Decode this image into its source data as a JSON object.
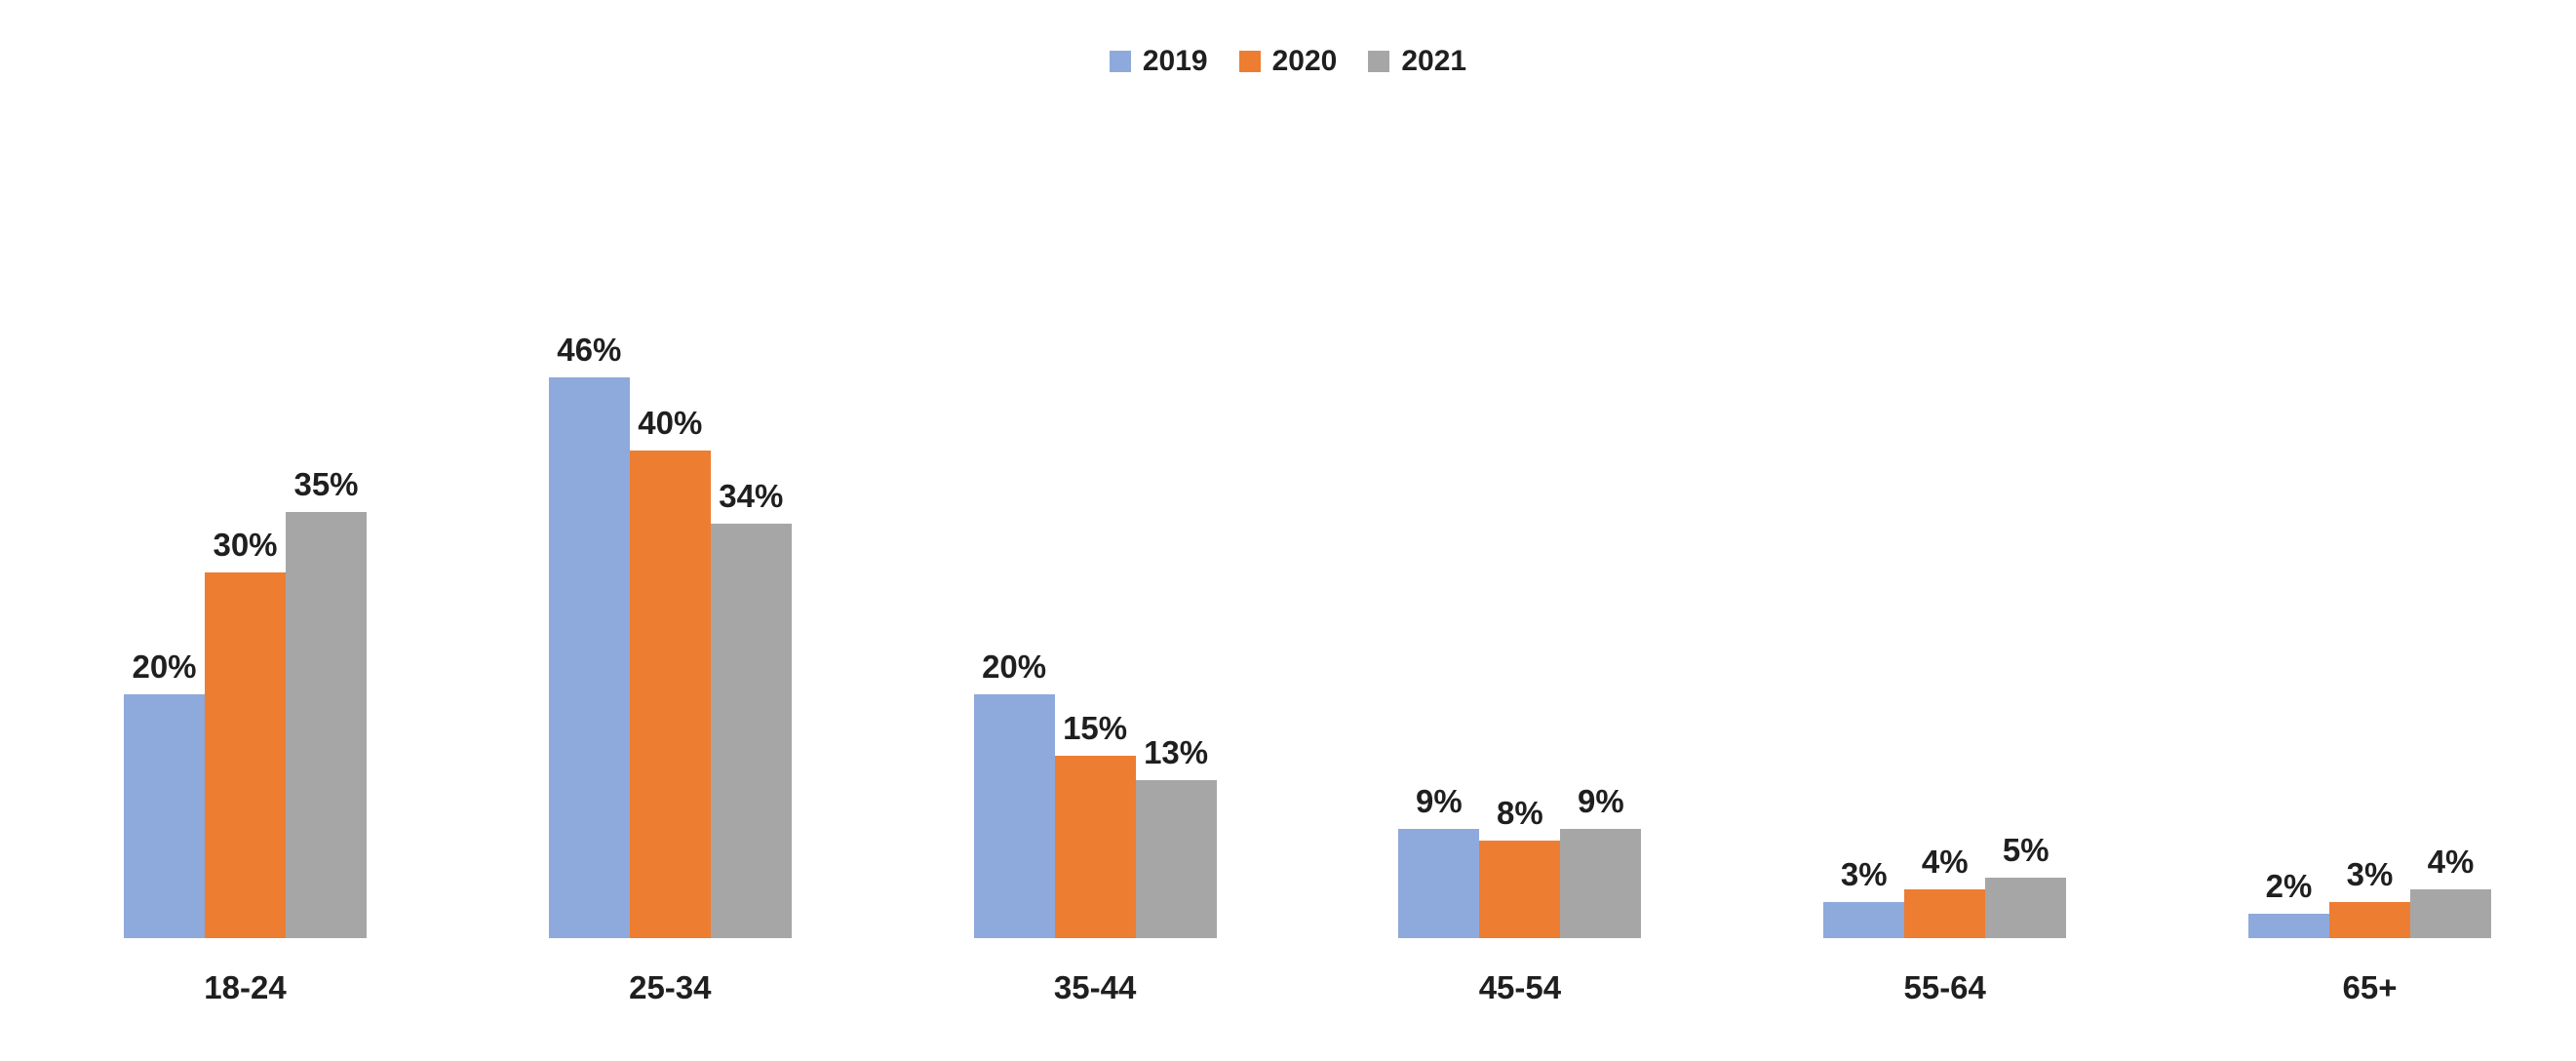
{
  "chart_data": {
    "type": "bar",
    "title": "",
    "categories": [
      "18-24",
      "25-34",
      "35-44",
      "45-54",
      "55-64",
      "65+"
    ],
    "series": [
      {
        "name": "2019",
        "color": "#8EA9DB",
        "values": [
          20,
          46,
          20,
          9,
          3,
          2
        ]
      },
      {
        "name": "2020",
        "color": "#ED7D31",
        "values": [
          30,
          40,
          15,
          8,
          4,
          3
        ]
      },
      {
        "name": "2021",
        "color": "#A6A6A6",
        "values": [
          35,
          34,
          13,
          9,
          5,
          4
        ]
      }
    ],
    "value_suffix": "%",
    "ylim": [
      0,
      48
    ],
    "grid": false,
    "axes_visible": false,
    "data_labels": true,
    "legend_position": "top",
    "text_color": "#1F1F1F"
  }
}
